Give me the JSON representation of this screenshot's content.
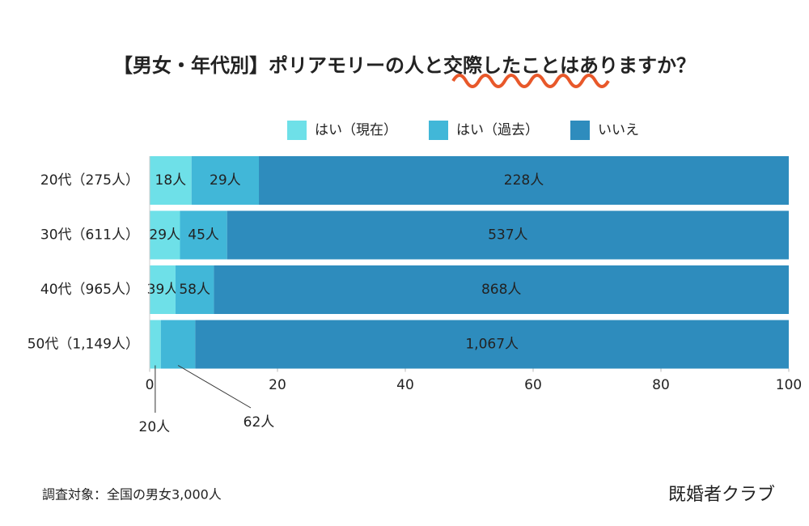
{
  "chart_data": {
    "type": "bar100h",
    "title": "【男女・年代別】ポリアモリーの人と交際したことはありますか？",
    "categories": [
      "20代（275人）",
      "30代（611人）",
      "40代（965人）",
      "50代（1,149人）"
    ],
    "series": [
      {
        "name": "はい（現在）",
        "color": "#6ee0e8",
        "values": [
          18,
          29,
          39,
          20
        ],
        "value_labels": [
          "18人",
          "29人",
          "39人",
          "20人"
        ]
      },
      {
        "name": "はい（過去）",
        "color": "#41b7d8",
        "values": [
          29,
          45,
          58,
          62
        ],
        "value_labels": [
          "29人",
          "45人",
          "58人",
          "62人"
        ]
      },
      {
        "name": "いいえ",
        "color": "#2e8cbd",
        "values": [
          228,
          537,
          868,
          1067
        ],
        "value_labels": [
          "228人",
          "537人",
          "868人",
          "1,067人"
        ]
      }
    ],
    "xlim": [
      0,
      100
    ],
    "xticks": [
      0,
      20,
      40,
      60,
      80,
      100
    ],
    "note": "調査対象：全国の男女3,000人",
    "source": "既婚者クラブ"
  }
}
